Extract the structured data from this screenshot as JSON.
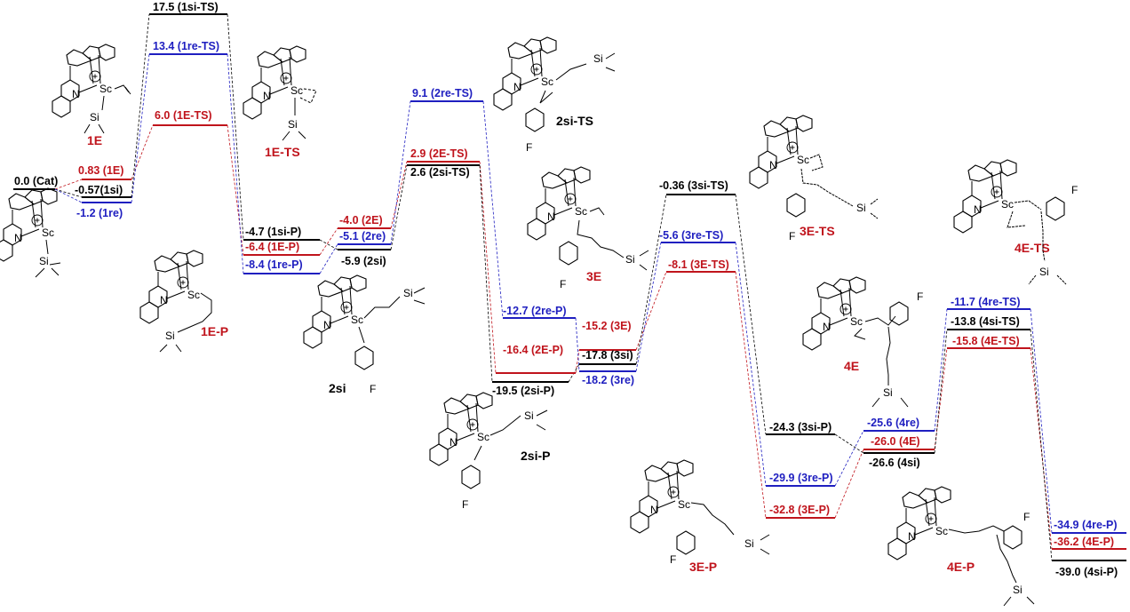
{
  "colors": {
    "black": "#000000",
    "red": "#c0141c",
    "blue": "#1f1fc0"
  },
  "levels": {
    "cat": "0.0 (Cat)",
    "e1_red": "0.83 (1E)",
    "si1": "-0.57(1si)",
    "re1": "-1.2 (1re)",
    "ts1si": "17.5 (1si-TS)",
    "ts1re": "13.4 (1re-TS)",
    "ts1e": "6.0 (1E-TS)",
    "p1si": "-4.7 (1si-P)",
    "p1e": "-6.4 (1E-P)",
    "p1re": "-8.4 (1re-P)",
    "e2": "-4.0 (2E)",
    "re2": "-5.1 (2re)",
    "si2": "-5.9 (2si)",
    "ts2re": "9.1 (2re-TS)",
    "ts2e": "2.9 (2E-TS)",
    "ts2si": "2.6 (2si-TS)",
    "p2re": "-12.7 (2re-P)",
    "p2e": "-16.4 (2E-P)",
    "p2si": "-19.5 (2si-P)",
    "e3": "-15.2 (3E)",
    "si3": "-17.8 (3si)",
    "re3": "-18.2 (3re)",
    "ts3si": "-0.36 (3si-TS)",
    "ts3re": "-5.6 (3re-TS)",
    "ts3e": "-8.1 (3E-TS)",
    "p3si": "-24.3 (3si-P)",
    "p3re": "-29.9 (3re-P)",
    "p3e": "-32.8 (3E-P)",
    "re4": "-25.6 (4re)",
    "e4": "-26.0 (4E)",
    "si4": "-26.6 (4si)",
    "ts4re": "-11.7 (4re-TS)",
    "ts4si": "-13.8 (4si-TS)",
    "ts4e": "-15.8 (4E-TS)",
    "p4re": "-34.9 (4re-P)",
    "p4e": "-36.2 (4E-P)",
    "p4si": "-39.0 (4si-P)"
  },
  "compounds": {
    "c1E": "1E",
    "c1ETS": "1E-TS",
    "c1EP": "1E-P",
    "c2si": "2si",
    "c2siTS": "2si-TS",
    "c2siP": "2si-P",
    "c3E": "3E",
    "c3ETS": "3E-TS",
    "c3EP": "3E-P",
    "c4E": "4E",
    "c4ETS": "4E-TS",
    "c4EP": "4E-P"
  },
  "atoms": {
    "sc": "Sc",
    "n": "N",
    "si": "Si",
    "f": "F",
    "plus": "+"
  }
}
